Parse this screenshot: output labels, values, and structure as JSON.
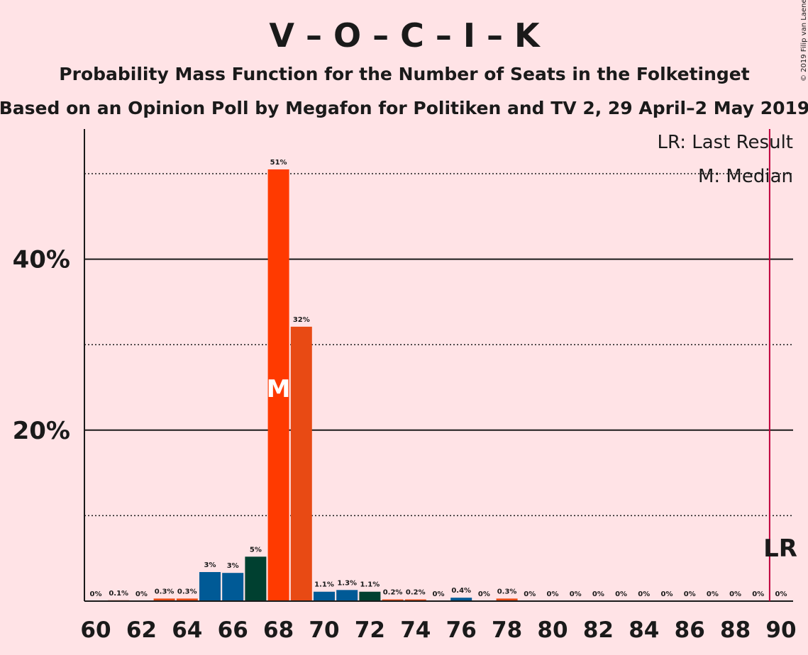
{
  "header": {
    "title": "V – O – C – I – K",
    "subtitle": "Probability Mass Function for the Number of Seats in the Folketinget",
    "source": "Based on an Opinion Poll by Megafon for Politiken and TV 2, 29 April–2 May 2019"
  },
  "copyright": "© 2019 Filip van Laenen",
  "legend": {
    "last_result": "LR: Last Result",
    "median": "M: Median"
  },
  "markers": {
    "median_label": "M",
    "last_result_label": "LR"
  },
  "colors": {
    "background": "#ffe3e6",
    "V": "#005a96",
    "O": "#e84a14",
    "C": "#004030",
    "I": "#ff3a00",
    "last_result_line": "#c0003c"
  },
  "chart_data": {
    "type": "bar",
    "x": [
      60,
      61,
      62,
      63,
      64,
      65,
      66,
      67,
      68,
      69,
      70,
      71,
      72,
      73,
      74,
      75,
      76,
      77,
      78,
      79,
      80,
      81,
      82,
      83,
      84,
      85,
      86,
      87,
      88,
      89,
      90
    ],
    "values": [
      0,
      0.1,
      0,
      0.3,
      0.3,
      3.4,
      3.3,
      5.2,
      50.5,
      32.1,
      1.1,
      1.3,
      1.1,
      0.2,
      0.2,
      0,
      0.4,
      0,
      0.3,
      0,
      0,
      0,
      0,
      0,
      0,
      0,
      0,
      0,
      0,
      0,
      0
    ],
    "labels": [
      "0%",
      "0.1%",
      "0%",
      "0.3%",
      "0.3%",
      "3%",
      "3%",
      "5%",
      "51%",
      "32%",
      "1.1%",
      "1.3%",
      "1.1%",
      "0.2%",
      "0.2%",
      "0%",
      "0.4%",
      "0%",
      "0.3%",
      "0%",
      "0%",
      "0%",
      "0%",
      "0%",
      "0%",
      "0%",
      "0%",
      "0%",
      "0%",
      "0%",
      "0%"
    ],
    "bar_colors": [
      "#e84a14",
      "#e84a14",
      "#e84a14",
      "#e84a14",
      "#e84a14",
      "#005a96",
      "#005a96",
      "#004030",
      "#ff3a00",
      "#e84a14",
      "#005a96",
      "#005a96",
      "#004030",
      "#e84a14",
      "#e84a14",
      "#e84a14",
      "#005a96",
      "#e84a14",
      "#e84a14",
      "#e84a14",
      "#e84a14",
      "#e84a14",
      "#e84a14",
      "#e84a14",
      "#e84a14",
      "#e84a14",
      "#e84a14",
      "#e84a14",
      "#e84a14",
      "#e84a14",
      "#e84a14"
    ],
    "xticks": [
      60,
      62,
      64,
      66,
      68,
      70,
      72,
      74,
      76,
      78,
      80,
      82,
      84,
      86,
      88,
      90
    ],
    "xtick_labels": [
      "60",
      "62",
      "64",
      "66",
      "68",
      "70",
      "72",
      "74",
      "76",
      "78",
      "80",
      "82",
      "84",
      "86",
      "88",
      "90"
    ],
    "yticks": [
      20,
      40
    ],
    "ytick_labels": [
      "20%",
      "40%"
    ],
    "dotted_gridlines": [
      10,
      30,
      50
    ],
    "ylim": [
      0,
      55
    ],
    "median": 68,
    "last_result": 89.5
  }
}
